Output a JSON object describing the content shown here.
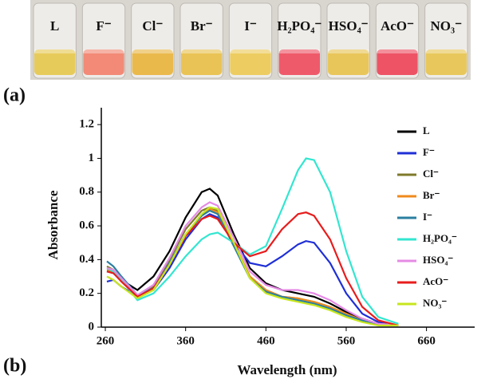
{
  "panel_labels": [
    "(a)",
    "(b)"
  ],
  "photo": {
    "labels": [
      "L",
      "F⁻",
      "Cl⁻",
      "Br⁻",
      "I⁻",
      "H₂PO₄⁻",
      "HSO₄⁻",
      "AcO⁻",
      "NO₃⁻"
    ],
    "colors": [
      "#e6c84a",
      "#f2806a",
      "#e9b43a",
      "#e8bf45",
      "#ecca52",
      "#ee4a5c",
      "#e8c24a",
      "#ec4256",
      "#e7c44c"
    ]
  },
  "chart_data": {
    "type": "line",
    "x_label": "Wavelength (nm)",
    "y_label": "Absorbance",
    "x": [
      262,
      270,
      280,
      300,
      320,
      340,
      360,
      380,
      390,
      400,
      420,
      440,
      460,
      480,
      500,
      510,
      520,
      540,
      560,
      580,
      600,
      625
    ],
    "xlim": [
      255,
      720
    ],
    "xticks": [
      260,
      360,
      460,
      560,
      660
    ],
    "ylim": [
      0,
      1.3
    ],
    "yticks": [
      0,
      0.2,
      0.4,
      0.6,
      0.8,
      1,
      1.2
    ],
    "series": [
      {
        "name": "L",
        "color": "#000000",
        "values": [
          0.33,
          0.32,
          0.28,
          0.22,
          0.3,
          0.45,
          0.65,
          0.8,
          0.82,
          0.78,
          0.55,
          0.35,
          0.26,
          0.22,
          0.2,
          0.19,
          0.18,
          0.14,
          0.09,
          0.05,
          0.02,
          0.01
        ]
      },
      {
        "name": "F⁻",
        "color": "#1f2fd6",
        "values": [
          0.27,
          0.28,
          0.24,
          0.18,
          0.22,
          0.35,
          0.52,
          0.64,
          0.67,
          0.65,
          0.5,
          0.38,
          0.36,
          0.42,
          0.49,
          0.51,
          0.5,
          0.38,
          0.2,
          0.08,
          0.03,
          0.01
        ]
      },
      {
        "name": "Cl⁻",
        "color": "#7f7a2a",
        "values": [
          0.36,
          0.34,
          0.28,
          0.19,
          0.24,
          0.4,
          0.58,
          0.69,
          0.71,
          0.69,
          0.5,
          0.3,
          0.22,
          0.18,
          0.17,
          0.16,
          0.15,
          0.12,
          0.08,
          0.04,
          0.02,
          0.01
        ]
      },
      {
        "name": "Br⁻",
        "color": "#f08a1c",
        "values": [
          0.34,
          0.33,
          0.27,
          0.18,
          0.22,
          0.37,
          0.55,
          0.66,
          0.7,
          0.68,
          0.5,
          0.3,
          0.22,
          0.18,
          0.17,
          0.16,
          0.15,
          0.12,
          0.08,
          0.04,
          0.02,
          0.01
        ]
      },
      {
        "name": "I⁻",
        "color": "#2a7fa0",
        "values": [
          0.39,
          0.36,
          0.3,
          0.19,
          0.23,
          0.38,
          0.55,
          0.66,
          0.69,
          0.67,
          0.48,
          0.29,
          0.21,
          0.18,
          0.16,
          0.15,
          0.14,
          0.11,
          0.07,
          0.04,
          0.02,
          0.01
        ]
      },
      {
        "name": "H₂PO₄⁻",
        "color": "#33e6d0",
        "values": [
          0.35,
          0.33,
          0.28,
          0.16,
          0.2,
          0.3,
          0.42,
          0.52,
          0.55,
          0.56,
          0.5,
          0.43,
          0.48,
          0.7,
          0.93,
          1.0,
          0.99,
          0.8,
          0.45,
          0.18,
          0.06,
          0.02
        ]
      },
      {
        "name": "HSO₄⁻",
        "color": "#e58ae5",
        "values": [
          0.35,
          0.34,
          0.29,
          0.19,
          0.25,
          0.41,
          0.6,
          0.71,
          0.74,
          0.72,
          0.53,
          0.33,
          0.25,
          0.22,
          0.22,
          0.21,
          0.2,
          0.16,
          0.1,
          0.05,
          0.02,
          0.01
        ]
      },
      {
        "name": "AcO⁻",
        "color": "#e81c1c",
        "values": [
          0.33,
          0.32,
          0.27,
          0.18,
          0.23,
          0.37,
          0.54,
          0.64,
          0.66,
          0.64,
          0.5,
          0.42,
          0.45,
          0.58,
          0.67,
          0.68,
          0.66,
          0.52,
          0.29,
          0.12,
          0.04,
          0.01
        ]
      },
      {
        "name": "NO₃⁻",
        "color": "#c8e61e",
        "values": [
          0.3,
          0.28,
          0.24,
          0.17,
          0.22,
          0.37,
          0.55,
          0.67,
          0.71,
          0.7,
          0.5,
          0.29,
          0.2,
          0.17,
          0.15,
          0.14,
          0.13,
          0.1,
          0.06,
          0.03,
          0.01,
          0.01
        ]
      }
    ]
  }
}
